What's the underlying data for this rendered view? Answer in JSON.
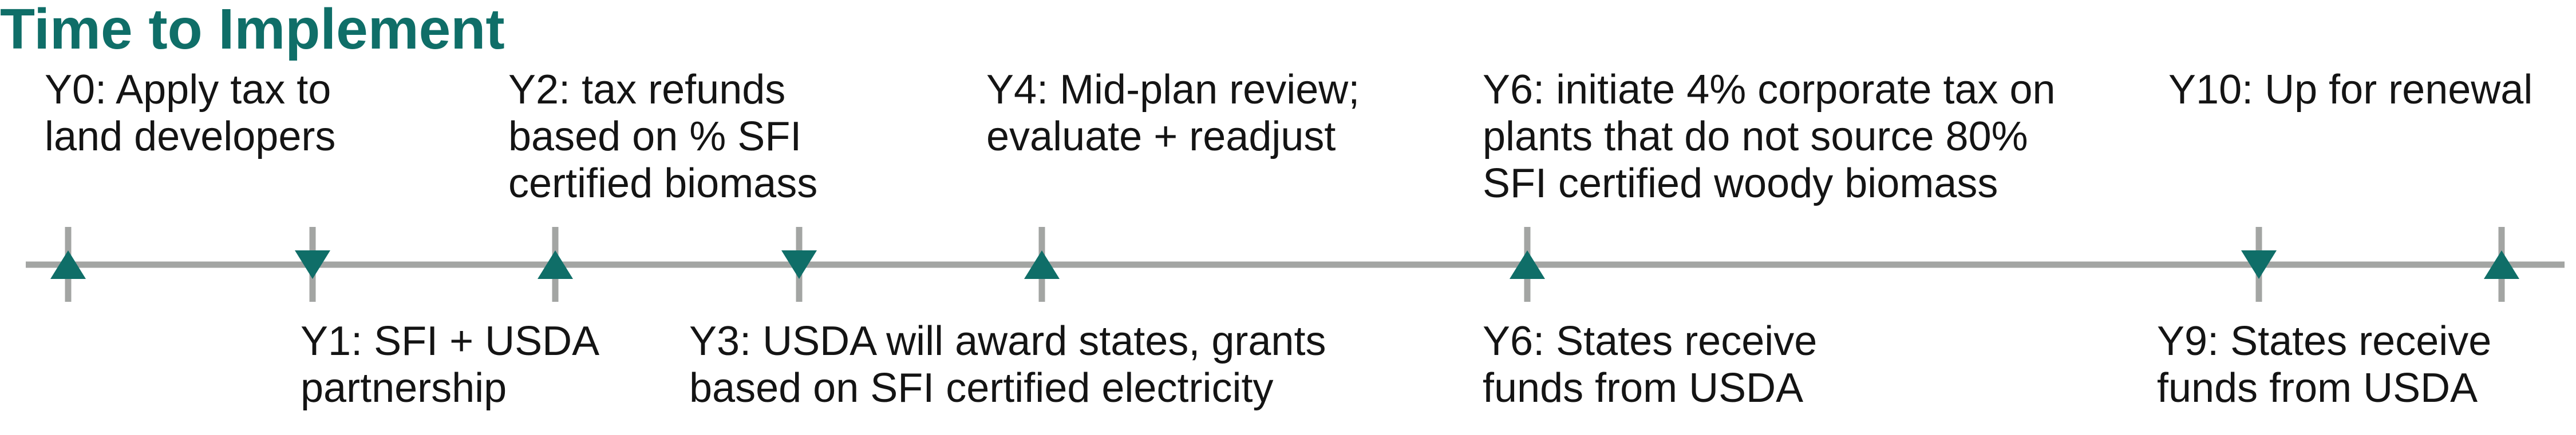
{
  "title": "Time to Implement",
  "colors": {
    "title": "#0f6e68",
    "marker": "#0f6e68",
    "axis": "#a3a5a3",
    "text": "#141414"
  },
  "events": [
    {
      "name": "y0",
      "label": "Y0: Apply tax to\nland developers",
      "side": "top",
      "marker": "up-triangle"
    },
    {
      "name": "y1",
      "label": "Y1: SFI + USDA\npartnership",
      "side": "bottom",
      "marker": "down-triangle"
    },
    {
      "name": "y2",
      "label": "Y2: tax refunds\nbased on % SFI\ncertified biomass",
      "side": "top",
      "marker": "up-triangle"
    },
    {
      "name": "y3",
      "label": "Y3: USDA will award states, grants\nbased on SFI certified electricity",
      "side": "bottom",
      "marker": "down-triangle"
    },
    {
      "name": "y4",
      "label": "Y4: Mid-plan review;\nevaluate + readjust",
      "side": "top",
      "marker": "up-triangle"
    },
    {
      "name": "y6-tax",
      "label": "Y6: initiate 4% corporate tax on\nplants that do not source 80%\nSFI certified woody biomass",
      "side": "top",
      "marker": "up-triangle"
    },
    {
      "name": "y6-funds",
      "label": "Y6: States receive\nfunds from USDA",
      "side": "bottom",
      "marker": "none"
    },
    {
      "name": "y9",
      "label": "Y9: States receive\nfunds from USDA",
      "side": "bottom",
      "marker": "down-triangle"
    },
    {
      "name": "y10",
      "label": "Y10: Up for renewal",
      "side": "top",
      "marker": "up-triangle"
    }
  ]
}
